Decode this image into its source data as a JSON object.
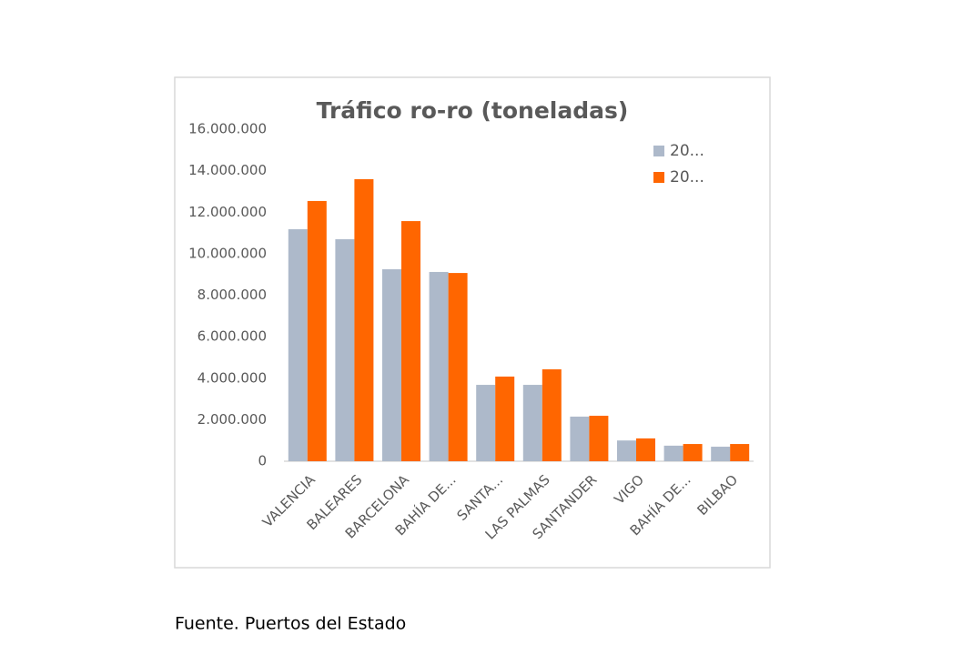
{
  "chart_data": {
    "type": "bar",
    "title": "Tráfico ro-ro (toneladas)",
    "categories": [
      "VALENCIA",
      "BALEARES",
      "BARCELONA",
      "BAHÍA DE...",
      "SANTA...",
      "LAS PALMAS",
      "SANTANDER",
      "VIGO",
      "BAHÍA DE...",
      "BILBAO"
    ],
    "series": [
      {
        "name": "20...",
        "color": "#adb9ca",
        "values": [
          11180000,
          10700000,
          9250000,
          9120000,
          3680000,
          3680000,
          2150000,
          1000000,
          750000,
          700000
        ]
      },
      {
        "name": "20...",
        "color": "#ff6600",
        "values": [
          12540000,
          13590000,
          11570000,
          9070000,
          4080000,
          4430000,
          2190000,
          1100000,
          830000,
          830000
        ]
      }
    ],
    "ylim": [
      0,
      16000000
    ],
    "yticks": [
      0,
      {
        "value": 2000000,
        "label": "2.000.000"
      },
      {
        "value": 4000000,
        "label": "4.000.000"
      },
      {
        "value": 6000000,
        "label": "6.000.000"
      },
      {
        "value": 8000000,
        "label": "8.000.000"
      },
      {
        "value": 10000000,
        "label": "10.000.000"
      },
      {
        "value": 12000000,
        "label": "12.000.000"
      },
      {
        "value": 14000000,
        "label": "14.000.000"
      },
      {
        "value": 16000000,
        "label": "16.000.000"
      }
    ],
    "grid": false,
    "legend": "top-right",
    "source": "Fuente. Puertos del Estado"
  }
}
